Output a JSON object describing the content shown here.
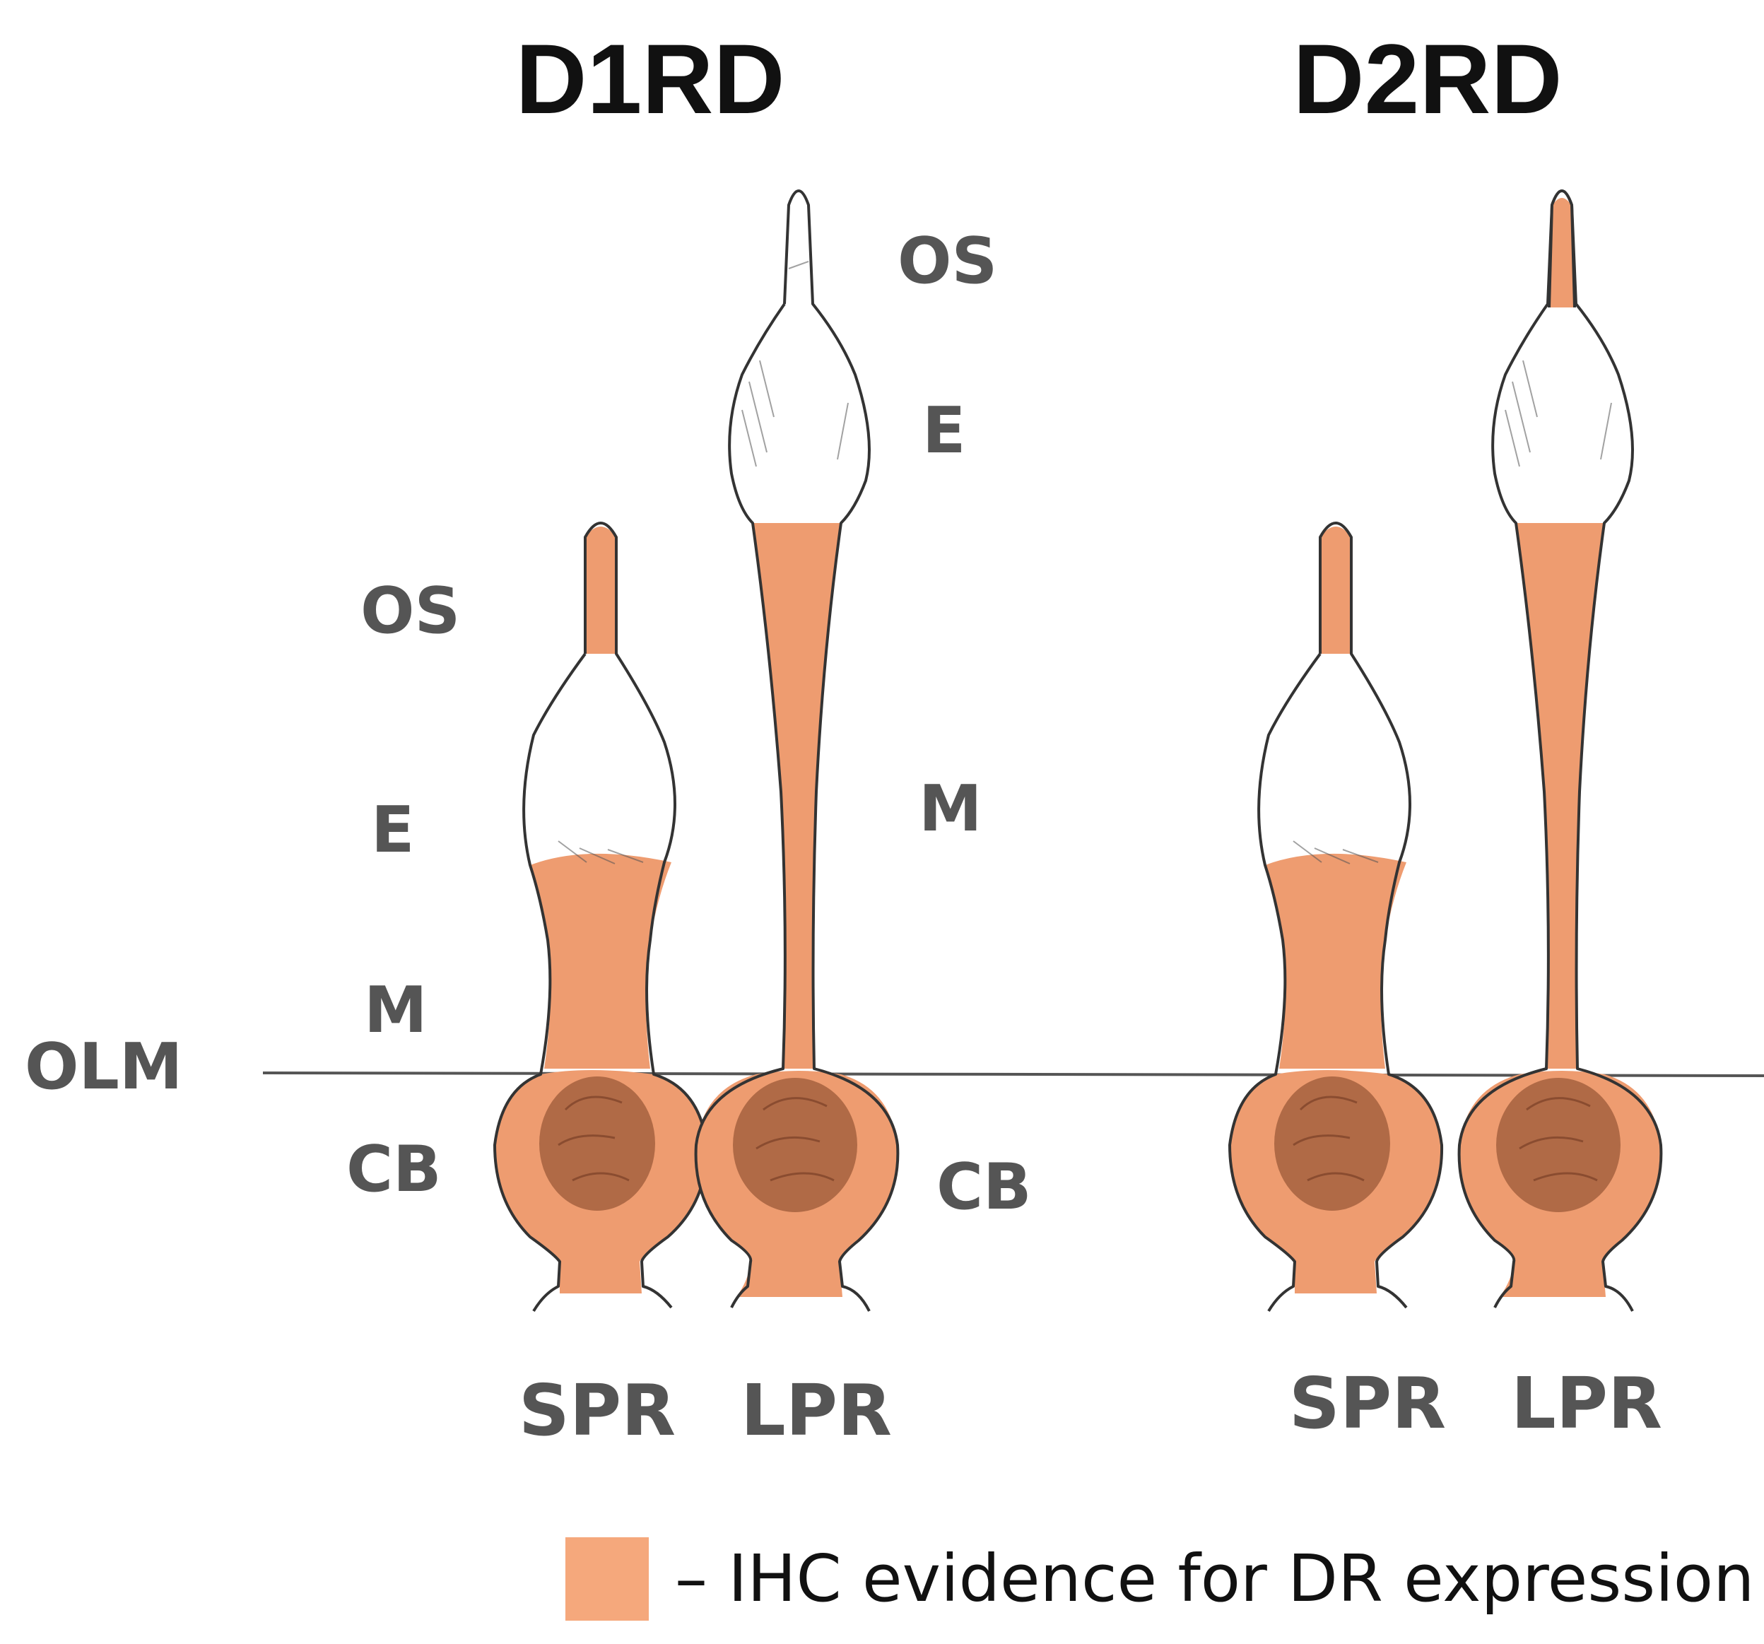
{
  "panels": {
    "d1": {
      "title": "D1RD",
      "cell_short": "SPR",
      "cell_long": "LPR",
      "short_labels": {
        "os": "OS",
        "e": "E",
        "m": "M",
        "cb": "CB"
      },
      "long_labels": {
        "os": "OS",
        "e": "E",
        "m": "M",
        "cb": "CB"
      },
      "short_cell_stained": [
        "OS",
        "M",
        "CB"
      ],
      "long_cell_stained": [
        "M",
        "CB"
      ]
    },
    "d2": {
      "title": "D2RD",
      "cell_short": "SPR",
      "cell_long": "LPR",
      "short_cell_stained": [
        "OS",
        "M",
        "CB"
      ],
      "long_cell_stained": [
        "OS",
        "M",
        "CB"
      ]
    }
  },
  "olm_label": "OLM",
  "legend": {
    "text": "– IHC evidence for DR expression",
    "color": "#F5A87C"
  },
  "colors": {
    "stain": "#EE9C70",
    "nucleus": "#B06A46",
    "outline": "#333333"
  }
}
